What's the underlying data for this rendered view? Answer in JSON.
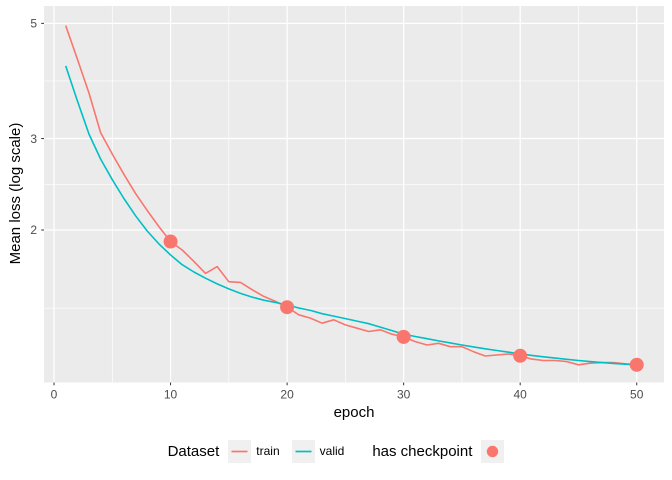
{
  "figure": {
    "background": "#FFFFFF",
    "panel_background": "#EBEBEB",
    "grid_color": "#FFFFFF",
    "tick_color": "#333333",
    "tick_label_color": "#4D4D4D",
    "legend_key_background": "#F0F0F0"
  },
  "chart_data": {
    "type": "line",
    "title": "",
    "xlabel": "epoch",
    "ylabel": "Mean loss (log scale)",
    "y_scale": "log",
    "grid": true,
    "legend_position": "bottom",
    "x_breaks": [
      0,
      10,
      20,
      30,
      40,
      50
    ],
    "x_break_labels": [
      "0",
      "10",
      "20",
      "30",
      "40",
      "50"
    ],
    "x_minor_breaks": [
      5,
      15,
      25,
      35,
      45
    ],
    "y_breaks": [
      5,
      3,
      2
    ],
    "y_break_labels": [
      "5",
      "3",
      "2"
    ],
    "y_minor_breaks": [
      3.873,
      2.449,
      1.414
    ],
    "x_range": [
      -0.86,
      52.34
    ],
    "y_range": [
      1.017,
      5.4
    ],
    "x": [
      1,
      2,
      3,
      4,
      5,
      6,
      7,
      8,
      9,
      10,
      11,
      12,
      13,
      14,
      15,
      16,
      17,
      18,
      19,
      20,
      21,
      22,
      23,
      24,
      25,
      26,
      27,
      28,
      29,
      30,
      31,
      32,
      33,
      34,
      35,
      36,
      37,
      38,
      39,
      40,
      41,
      42,
      43,
      44,
      45,
      46,
      47,
      48,
      49,
      50
    ],
    "series": [
      {
        "name": "train",
        "color": "#F8766D",
        "values": [
          4.95,
          4.27,
          3.67,
          3.08,
          2.8,
          2.56,
          2.35,
          2.18,
          2.03,
          1.9,
          1.83,
          1.74,
          1.65,
          1.7,
          1.59,
          1.585,
          1.535,
          1.49,
          1.457,
          1.42,
          1.373,
          1.353,
          1.323,
          1.343,
          1.313,
          1.294,
          1.275,
          1.285,
          1.26,
          1.245,
          1.219,
          1.201,
          1.21,
          1.192,
          1.192,
          1.166,
          1.144,
          1.149,
          1.154,
          1.145,
          1.128,
          1.121,
          1.121,
          1.116,
          1.1,
          1.108,
          1.111,
          1.111,
          1.105,
          1.1
        ]
      },
      {
        "name": "valid",
        "color": "#00BFC4",
        "values": [
          4.14,
          3.55,
          3.06,
          2.74,
          2.5,
          2.3,
          2.13,
          1.99,
          1.88,
          1.79,
          1.715,
          1.66,
          1.615,
          1.575,
          1.54,
          1.51,
          1.485,
          1.465,
          1.45,
          1.435,
          1.415,
          1.4,
          1.38,
          1.365,
          1.35,
          1.335,
          1.32,
          1.3,
          1.28,
          1.26,
          1.247,
          1.235,
          1.223,
          1.212,
          1.201,
          1.191,
          1.181,
          1.172,
          1.163,
          1.155,
          1.147,
          1.14,
          1.133,
          1.127,
          1.121,
          1.116,
          1.111,
          1.107,
          1.103,
          1.1
        ]
      }
    ],
    "checkpoints": {
      "label": "has checkpoint",
      "color": "#F8766D",
      "epochs": [
        10,
        20,
        30,
        40,
        50
      ],
      "values": [
        1.9,
        1.42,
        1.245,
        1.145,
        1.1
      ]
    }
  },
  "legend": {
    "dataset_title": "Dataset"
  }
}
